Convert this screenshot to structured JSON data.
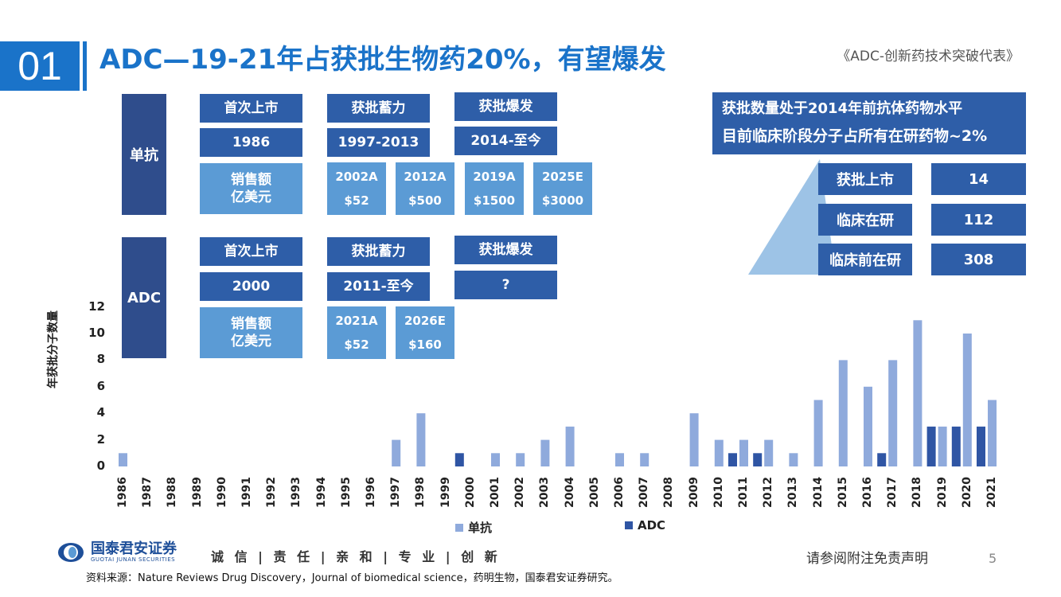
{
  "header": {
    "section_number": "01",
    "title": "ADC—19-21年占获批生物药20%，有望爆发",
    "subtitle": "《ADC-创新药技术突破代表》"
  },
  "mab": {
    "label": "单抗",
    "stages": [
      "首次上市",
      "获批蓄力",
      "获批爆发"
    ],
    "periods": [
      "1986",
      "1997-2013",
      "2014-至今"
    ],
    "sales_label": "销售额\n亿美元",
    "sales_label_line1": "销售额",
    "sales_label_line2": "亿美元",
    "sales": [
      {
        "year": "2002A",
        "value": "$52"
      },
      {
        "year": "2012A",
        "value": "$500"
      },
      {
        "year": "2019A",
        "value": "$1500"
      },
      {
        "year": "2025E",
        "value": "$3000"
      }
    ]
  },
  "adc": {
    "label": "ADC",
    "stages": [
      "首次上市",
      "获批蓄力",
      "获批爆发"
    ],
    "periods": [
      "2000",
      "2011-至今",
      "?"
    ],
    "sales_label_line1": "销售额",
    "sales_label_line2": "亿美元",
    "sales": [
      {
        "year": "2021A",
        "value": "$52"
      },
      {
        "year": "2026E",
        "value": "$160"
      }
    ]
  },
  "callout": {
    "line1": "获批数量处于2014年前抗体药物水平",
    "line2": "目前临床阶段分子占所有在研药物~2%"
  },
  "pyramid": {
    "rows": [
      {
        "label": "获批上市",
        "value": "14"
      },
      {
        "label": "临床在研",
        "value": "112"
      },
      {
        "label": "临床前在研",
        "value": "308"
      }
    ],
    "color": "#9dc3e6"
  },
  "chart_data": {
    "type": "bar",
    "title": "",
    "xlabel": "",
    "ylabel": "年获批分子数量",
    "ylim": [
      0,
      12
    ],
    "yticks": [
      "0",
      "2",
      "4",
      "6",
      "8",
      "10",
      "12"
    ],
    "categories": [
      "1986",
      "1987",
      "1988",
      "1989",
      "1990",
      "1991",
      "1992",
      "1993",
      "1994",
      "1995",
      "1996",
      "1997",
      "1998",
      "1999",
      "2000",
      "2001",
      "2002",
      "2003",
      "2004",
      "2005",
      "2006",
      "2007",
      "2008",
      "2009",
      "2010",
      "2011",
      "2012",
      "2013",
      "2014",
      "2015",
      "2016",
      "2017",
      "2018",
      "2019",
      "2020",
      "2021"
    ],
    "series": [
      {
        "name": "单抗",
        "color": "#8faadc",
        "values": [
          1,
          0,
          0,
          0,
          0,
          0,
          0,
          0,
          0,
          0,
          0,
          2,
          4,
          0,
          0,
          1,
          1,
          2,
          3,
          0,
          1,
          1,
          0,
          4,
          2,
          2,
          2,
          1,
          5,
          8,
          6,
          8,
          11,
          3,
          10,
          5
        ]
      },
      {
        "name": "ADC",
        "color": "#2f55a4",
        "values": [
          0,
          0,
          0,
          0,
          0,
          0,
          0,
          0,
          0,
          0,
          0,
          0,
          0,
          0,
          1,
          0,
          0,
          0,
          0,
          0,
          0,
          0,
          0,
          0,
          0,
          1,
          1,
          0,
          0,
          0,
          0,
          1,
          0,
          3,
          3,
          3
        ]
      }
    ],
    "legend_position": "bottom"
  },
  "footer": {
    "company": "国泰君安证券",
    "company_en": "GUOTAI JUNAN SECURITIES",
    "slogan": "诚 信 | 责 任 | 亲 和 | 专 业 | 创 新",
    "source": "资料来源：Nature Reviews Drug Discovery，Journal of biomedical science，药明生物，国泰君安证券研究。",
    "disclaimer": "请参阅附注免责声明",
    "page_number": "5"
  }
}
